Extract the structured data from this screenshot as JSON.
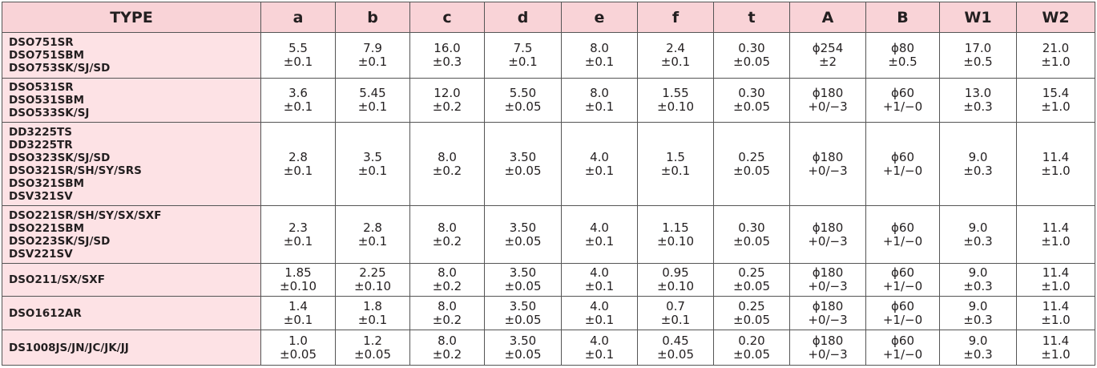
{
  "table": {
    "header": [
      "TYPE",
      "a",
      "b",
      "c",
      "d",
      "e",
      "f",
      "t",
      "A",
      "B",
      "W1",
      "W2"
    ],
    "rows": [
      {
        "type": [
          "DSO751SR",
          "DSO751SBM",
          "DSO753SK/SJ/SD"
        ],
        "cells": [
          [
            "5.5",
            "±0.1"
          ],
          [
            "7.9",
            "±0.1"
          ],
          [
            "16.0",
            "±0.3"
          ],
          [
            "7.5",
            "±0.1"
          ],
          [
            "8.0",
            "±0.1"
          ],
          [
            "2.4",
            "±0.1"
          ],
          [
            "0.30",
            "±0.05"
          ],
          [
            "ϕ254",
            "±2"
          ],
          [
            "ϕ80",
            "±0.5"
          ],
          [
            "17.0",
            "±0.5"
          ],
          [
            "21.0",
            "±1.0"
          ]
        ]
      },
      {
        "type": [
          "DSO531SR",
          "DSO531SBM",
          "DSO533SK/SJ"
        ],
        "cells": [
          [
            "3.6",
            "±0.1"
          ],
          [
            "5.45",
            "±0.1"
          ],
          [
            "12.0",
            "±0.2"
          ],
          [
            "5.50",
            "±0.05"
          ],
          [
            "8.0",
            "±0.1"
          ],
          [
            "1.55",
            "±0.10"
          ],
          [
            "0.30",
            "±0.05"
          ],
          [
            "ϕ180",
            "+0/−3"
          ],
          [
            "ϕ60",
            "+1/−0"
          ],
          [
            "13.0",
            "±0.3"
          ],
          [
            "15.4",
            "±1.0"
          ]
        ]
      },
      {
        "type": [
          "DD3225TS",
          "DD3225TR",
          "DSO323SK/SJ/SD",
          "DSO321SR/SH/SY/SRS",
          "DSO321SBM",
          "DSV321SV"
        ],
        "cells": [
          [
            "2.8",
            "±0.1"
          ],
          [
            "3.5",
            "±0.1"
          ],
          [
            "8.0",
            "±0.2"
          ],
          [
            "3.50",
            "±0.05"
          ],
          [
            "4.0",
            "±0.1"
          ],
          [
            "1.5",
            "±0.1"
          ],
          [
            "0.25",
            "±0.05"
          ],
          [
            "ϕ180",
            "+0/−3"
          ],
          [
            "ϕ60",
            "+1/−0"
          ],
          [
            "9.0",
            "±0.3"
          ],
          [
            "11.4",
            "±1.0"
          ]
        ]
      },
      {
        "type": [
          "DSO221SR/SH/SY/SX/SXF",
          "DSO221SBM",
          "DSO223SK/SJ/SD",
          "DSV221SV"
        ],
        "cells": [
          [
            "2.3",
            "±0.1"
          ],
          [
            "2.8",
            "±0.1"
          ],
          [
            "8.0",
            "±0.2"
          ],
          [
            "3.50",
            "±0.05"
          ],
          [
            "4.0",
            "±0.1"
          ],
          [
            "1.15",
            "±0.10"
          ],
          [
            "0.30",
            "±0.05"
          ],
          [
            "ϕ180",
            "+0/−3"
          ],
          [
            "ϕ60",
            "+1/−0"
          ],
          [
            "9.0",
            "±0.3"
          ],
          [
            "11.4",
            "±1.0"
          ]
        ]
      },
      {
        "type": [
          "DSO211/SX/SXF"
        ],
        "cells": [
          [
            "1.85",
            "±0.10"
          ],
          [
            "2.25",
            "±0.10"
          ],
          [
            "8.0",
            "±0.2"
          ],
          [
            "3.50",
            "±0.05"
          ],
          [
            "4.0",
            "±0.1"
          ],
          [
            "0.95",
            "±0.10"
          ],
          [
            "0.25",
            "±0.05"
          ],
          [
            "ϕ180",
            "+0/−3"
          ],
          [
            "ϕ60",
            "+1/−0"
          ],
          [
            "9.0",
            "±0.3"
          ],
          [
            "11.4",
            "±1.0"
          ]
        ]
      },
      {
        "type": [
          "DSO1612AR"
        ],
        "cells": [
          [
            "1.4",
            "±0.1"
          ],
          [
            "1.8",
            "±0.1"
          ],
          [
            "8.0",
            "±0.2"
          ],
          [
            "3.50",
            "±0.05"
          ],
          [
            "4.0",
            "±0.1"
          ],
          [
            "0.7",
            "±0.1"
          ],
          [
            "0.25",
            "±0.05"
          ],
          [
            "ϕ180",
            "+0/−3"
          ],
          [
            "ϕ60",
            "+1/−0"
          ],
          [
            "9.0",
            "±0.3"
          ],
          [
            "11.4",
            "±1.0"
          ]
        ]
      },
      {
        "type": [
          "DS1008JS/JN/JC/JK/JJ"
        ],
        "cells": [
          [
            "1.0",
            "±0.05"
          ],
          [
            "1.2",
            "±0.05"
          ],
          [
            "8.0",
            "±0.2"
          ],
          [
            "3.50",
            "±0.05"
          ],
          [
            "4.0",
            "±0.1"
          ],
          [
            "0.45",
            "±0.05"
          ],
          [
            "0.20",
            "±0.05"
          ],
          [
            "ϕ180",
            "+0/−3"
          ],
          [
            "ϕ60",
            "+1/−0"
          ],
          [
            "9.0",
            "±0.3"
          ],
          [
            "11.4",
            "±1.0"
          ]
        ]
      }
    ]
  }
}
